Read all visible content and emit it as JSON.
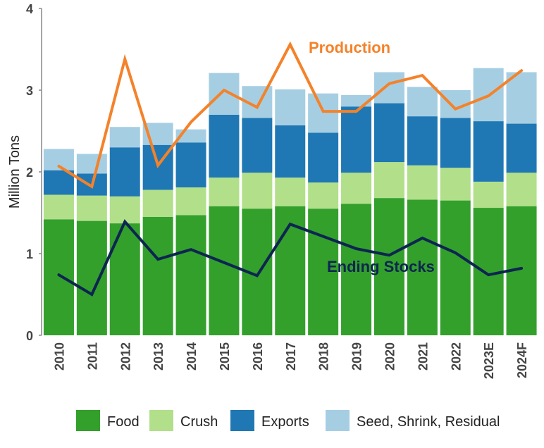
{
  "chart_data": {
    "type": "bar",
    "stacked": true,
    "categories": [
      "2010",
      "2011",
      "2012",
      "2013",
      "2014",
      "2015",
      "2016",
      "2017",
      "2018",
      "2019",
      "2020",
      "2021",
      "2022",
      "2023E",
      "2024F"
    ],
    "ylabel": "Million Tons",
    "ylim": [
      0,
      4
    ],
    "yticks": [
      "0",
      "1",
      "2",
      "3",
      "4"
    ],
    "grid": false,
    "legend_position": "bottom",
    "series": [
      {
        "name": "Food",
        "color": "#33a02c",
        "values": [
          1.42,
          1.4,
          1.37,
          1.45,
          1.47,
          1.58,
          1.55,
          1.58,
          1.55,
          1.61,
          1.68,
          1.66,
          1.65,
          1.56,
          1.58
        ]
      },
      {
        "name": "Crush",
        "color": "#b2df8a",
        "values": [
          0.3,
          0.31,
          0.33,
          0.33,
          0.34,
          0.35,
          0.44,
          0.35,
          0.32,
          0.38,
          0.44,
          0.42,
          0.4,
          0.32,
          0.41
        ]
      },
      {
        "name": "Exports",
        "color": "#1f78b4",
        "values": [
          0.3,
          0.27,
          0.6,
          0.55,
          0.55,
          0.77,
          0.67,
          0.64,
          0.61,
          0.81,
          0.72,
          0.6,
          0.61,
          0.74,
          0.6
        ]
      },
      {
        "name": "Seed, Shrink, Residual",
        "color": "#a6cee3",
        "values": [
          0.26,
          0.24,
          0.25,
          0.27,
          0.16,
          0.51,
          0.39,
          0.44,
          0.48,
          0.14,
          0.38,
          0.36,
          0.34,
          0.65,
          0.63
        ]
      }
    ],
    "lines": [
      {
        "name": "Production",
        "color": "#f4822a",
        "values": [
          2.07,
          1.82,
          3.38,
          2.08,
          2.61,
          3.0,
          2.79,
          3.56,
          2.74,
          2.74,
          3.08,
          3.18,
          2.77,
          2.93,
          3.24
        ]
      },
      {
        "name": "Ending Stocks",
        "color": "#0d2550",
        "values": [
          0.74,
          0.5,
          1.39,
          0.93,
          1.05,
          0.89,
          0.73,
          1.36,
          1.21,
          1.06,
          0.98,
          1.19,
          1.01,
          0.74,
          0.82
        ]
      }
    ]
  }
}
